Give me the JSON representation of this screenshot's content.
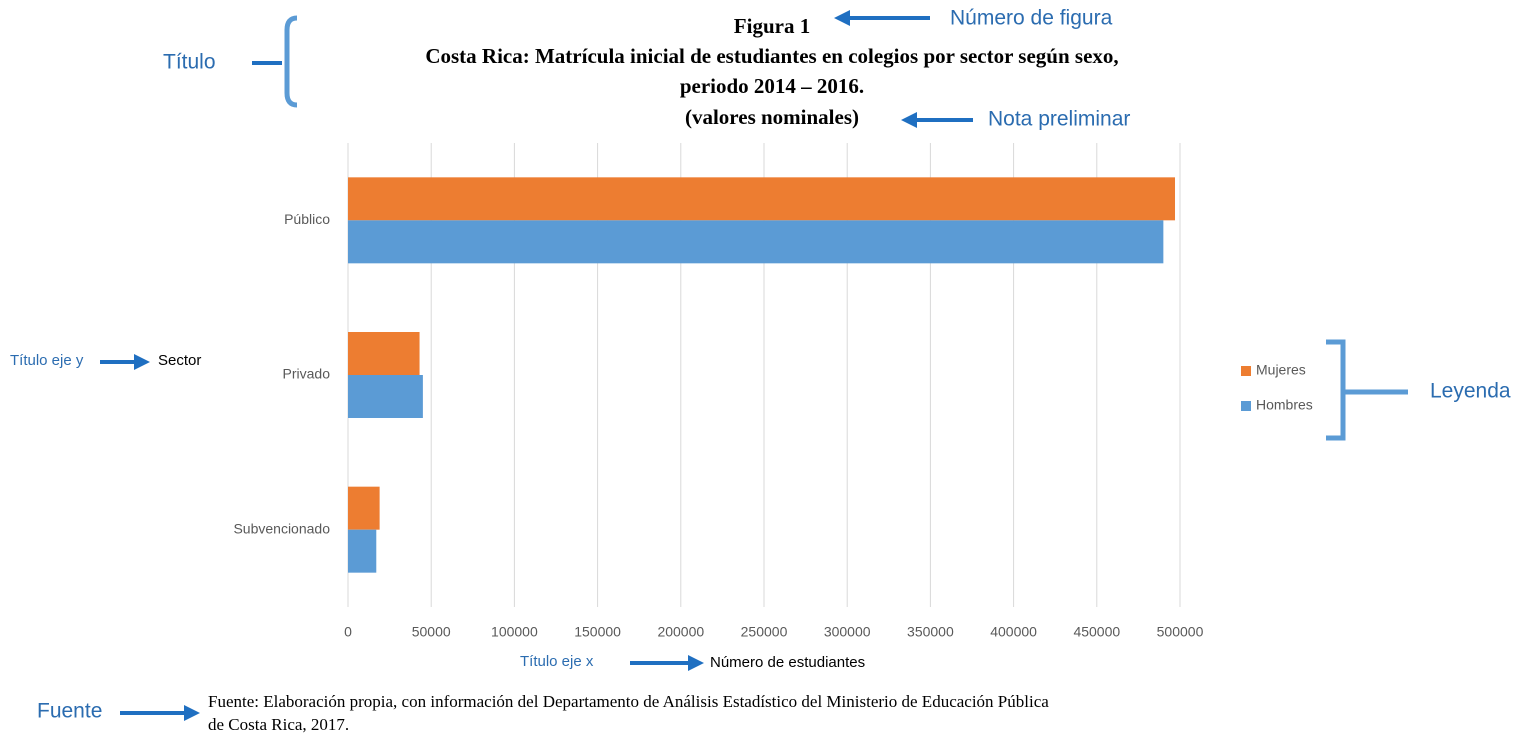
{
  "chart_data": {
    "type": "bar",
    "orientation": "horizontal",
    "figure_number": "Figura 1",
    "title": "Costa Rica: Matrícula inicial de estudiantes en colegios por sector según sexo,",
    "subtitle": "periodo 2014 – 2016.",
    "note": "(valores nominales)",
    "categories": [
      "Público",
      "Privado",
      "Subvencionado"
    ],
    "series": [
      {
        "name": "Mujeres",
        "color": "#ed7d31",
        "values": [
          497000,
          43000,
          19000
        ]
      },
      {
        "name": "Hombres",
        "color": "#5b9bd5",
        "values": [
          490000,
          45000,
          17000
        ]
      }
    ],
    "xlim": [
      0,
      500000
    ],
    "xticks": [
      0,
      50000,
      100000,
      150000,
      200000,
      250000,
      300000,
      350000,
      400000,
      450000,
      500000
    ],
    "x_label": "Número de estudiantes",
    "y_label": "Sector",
    "grid": true,
    "legend": "right",
    "source": [
      "Fuente: Elaboración propia, con información del Departamento de Análisis Estadístico del Ministerio de Educación Pública",
      "de Costa Rica, 2017."
    ]
  },
  "annotations": {
    "figure_number": "Número de figura",
    "title": "Título",
    "note": "Nota preliminar",
    "y_axis_title": "Título eje y",
    "x_axis_title": "Título eje x",
    "legend": "Leyenda",
    "source": "Fuente"
  }
}
